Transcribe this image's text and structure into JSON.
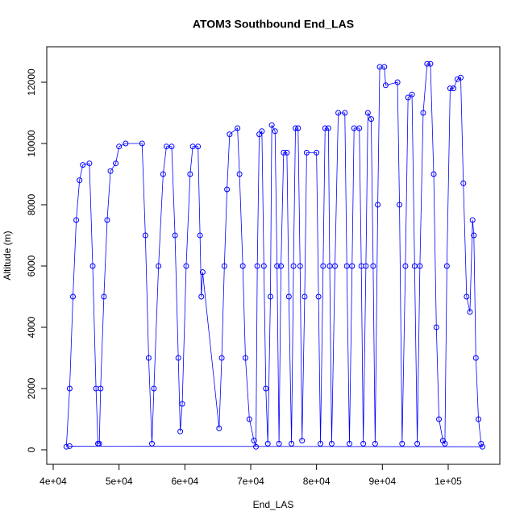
{
  "chart_data": {
    "type": "scatter-line",
    "title": "ATOM3 Southbound End_LAS",
    "x_label": "End_LAS",
    "y_label": "Altitude (m)",
    "xlim": [
      39020,
      107840
    ],
    "ylim": [
      -474,
      13158
    ],
    "xticks": [
      {
        "value": 40000,
        "label": "4e+04"
      },
      {
        "value": 50000,
        "label": "5e+04"
      },
      {
        "value": 60000,
        "label": "6e+04"
      },
      {
        "value": 70000,
        "label": "7e+04"
      },
      {
        "value": 80000,
        "label": "8e+04"
      },
      {
        "value": 90000,
        "label": "9e+04"
      },
      {
        "value": 100000,
        "label": "1e+05"
      }
    ],
    "yticks": [
      0,
      2000,
      4000,
      6000,
      8000,
      10000,
      12000
    ],
    "series": [
      {
        "color": "#0000ff",
        "x": [
          42000,
          42500,
          43000,
          43500,
          44000,
          44500,
          45500,
          46000,
          46500,
          46800,
          47000,
          47200,
          47700,
          48200,
          48700,
          49500,
          50000,
          51000,
          53500,
          54000,
          54500,
          55000,
          55300,
          56000,
          56700,
          57200,
          58000,
          58500,
          59000,
          59300,
          59600,
          60200,
          60800,
          61200,
          62000,
          62300,
          62500,
          62700,
          65200,
          65600,
          66000,
          66400,
          66800,
          68000,
          68300,
          68800,
          69200,
          69800,
          70500,
          70800,
          71000,
          71300,
          71700,
          72000,
          72300,
          72600,
          73000,
          73200,
          73700,
          74000,
          74300,
          74600,
          75000,
          75500,
          75800,
          76200,
          76500,
          76800,
          77200,
          77500,
          77800,
          78200,
          78500,
          80000,
          80300,
          80600,
          81000,
          81300,
          81800,
          82000,
          82300,
          82800,
          83300,
          84300,
          84600,
          85000,
          85400,
          85700,
          86500,
          86800,
          87100,
          87500,
          87800,
          88300,
          88600,
          88900,
          89300,
          89600,
          90300,
          90500,
          92300,
          92600,
          93000,
          93500,
          93900,
          94500,
          94900,
          95300,
          95700,
          96200,
          96800,
          97300,
          97800,
          98200,
          98600,
          99200,
          99500,
          99800,
          100300,
          100800,
          101400,
          101900,
          102300,
          102800,
          103300,
          103700,
          103900,
          104200,
          104600,
          105000,
          105200,
          42500
        ],
        "values": [
          100,
          2000,
          5000,
          7500,
          8800,
          9300,
          9350,
          6000,
          2000,
          200,
          200,
          2000,
          5000,
          7500,
          9100,
          9350,
          9900,
          10000,
          10000,
          7000,
          3000,
          200,
          2000,
          6000,
          9000,
          9900,
          9900,
          7000,
          3000,
          600,
          1500,
          6000,
          9000,
          9900,
          9900,
          7000,
          5000,
          5800,
          700,
          3000,
          6000,
          8500,
          10300,
          10500,
          9000,
          6000,
          3000,
          1000,
          300,
          100,
          6000,
          10300,
          10400,
          6000,
          2000,
          200,
          5000,
          10600,
          10400,
          6000,
          200,
          6000,
          9700,
          9700,
          5000,
          200,
          6000,
          10500,
          10500,
          6000,
          300,
          5000,
          9700,
          9700,
          5000,
          200,
          6000,
          10500,
          10500,
          6000,
          200,
          6000,
          11000,
          11000,
          6000,
          200,
          6000,
          10500,
          10500,
          6000,
          200,
          6000,
          11000,
          10800,
          6000,
          200,
          8000,
          12500,
          12500,
          11900,
          12000,
          8000,
          200,
          6000,
          11500,
          11600,
          6000,
          200,
          6000,
          11000,
          12600,
          12600,
          9000,
          4000,
          1000,
          300,
          200,
          6000,
          11800,
          11800,
          12100,
          12150,
          8700,
          5000,
          4500,
          7500,
          7000,
          3000,
          1000,
          200,
          100,
          120
        ]
      }
    ]
  }
}
